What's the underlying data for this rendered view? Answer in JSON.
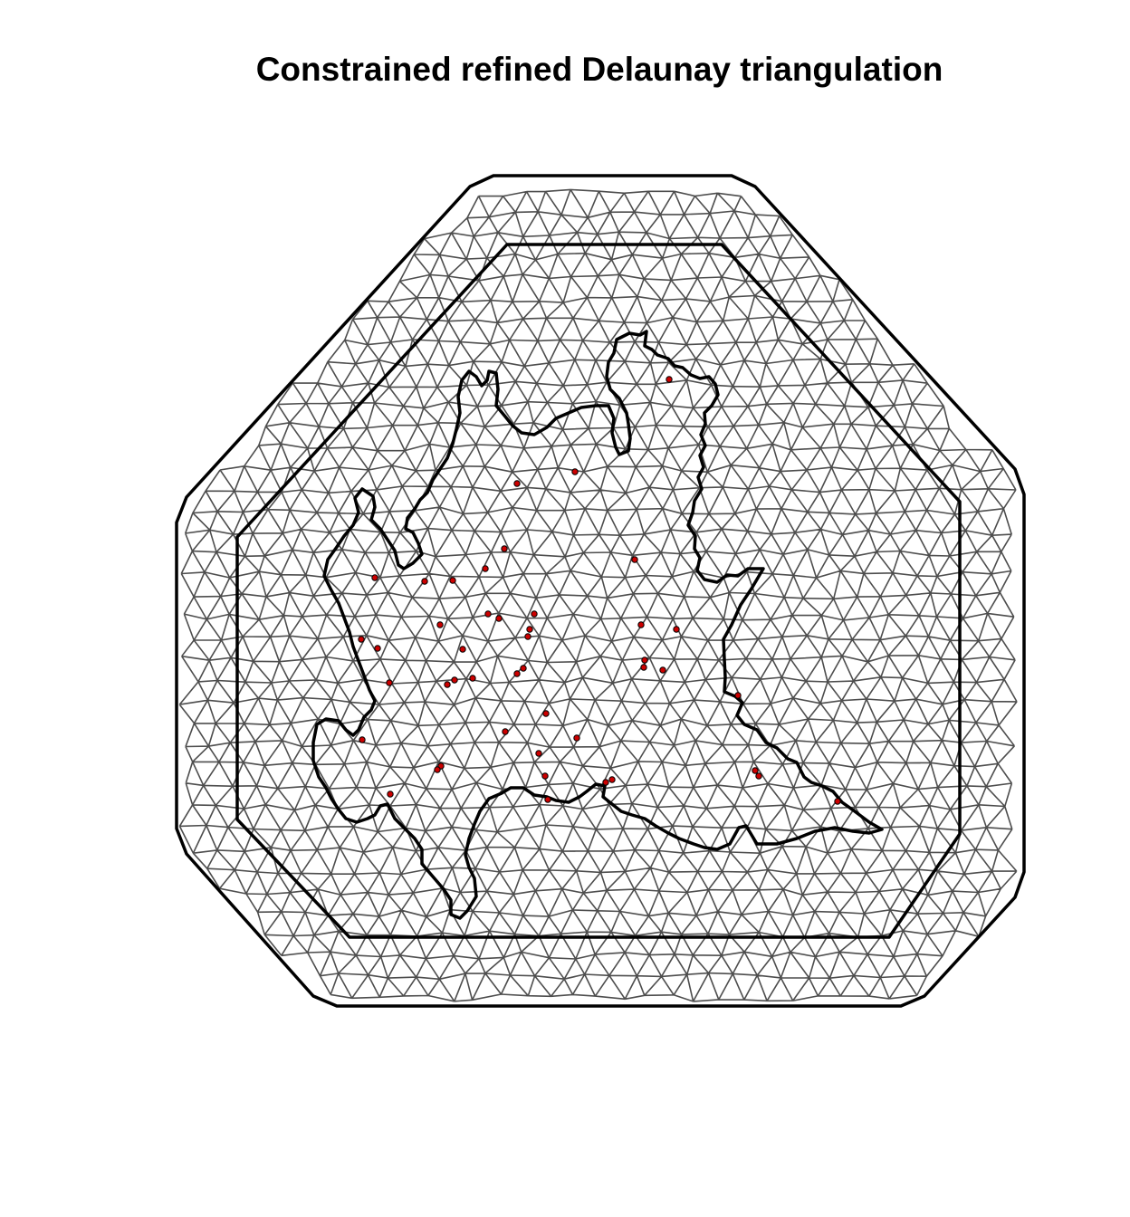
{
  "figure": {
    "title": "Constrained refined Delaunay triangulation"
  },
  "style": {
    "mesh_edge_color": "#4d4d4d",
    "boundary_color": "#000000",
    "point_fill": "#cc0000",
    "point_stroke": "#000000",
    "background": "#ffffff"
  },
  "description_items": {
    "outer_boundary": "outer-boundary",
    "inner_boundary": "inner-boundary",
    "region_outline": "region-outline",
    "observation_points": "observation-points"
  }
}
